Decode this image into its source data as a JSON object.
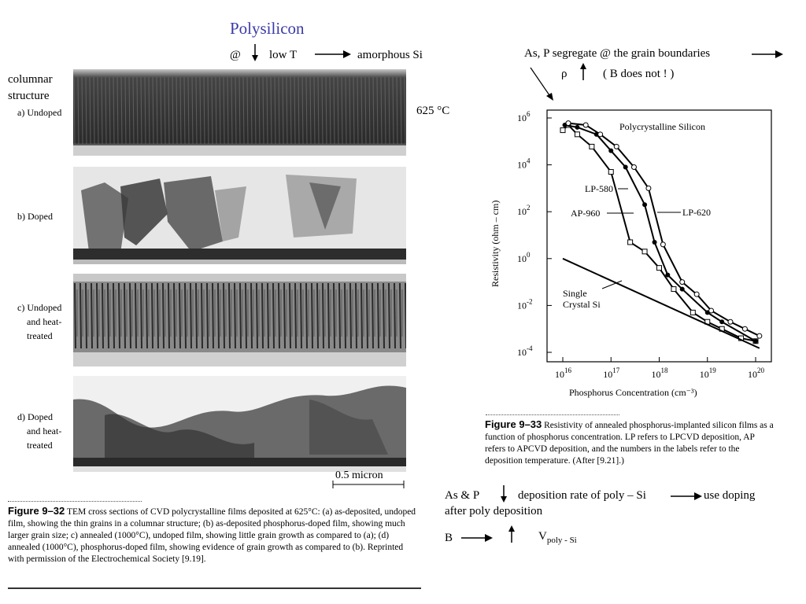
{
  "slide": {
    "title": "Polysilicon",
    "top_note": {
      "at": "@",
      "low_t": "low T",
      "result": "amorphous Si"
    },
    "columnar_1": "columnar",
    "columnar_2": "structure",
    "temperature": "625 °C",
    "segregation": {
      "line1": "As, P segregate @ the grain boundaries",
      "rho": "ρ",
      "note": "( B does not ! )"
    },
    "bottom": {
      "as_p": "As & P",
      "dep_rate": "deposition rate of poly – Si",
      "use_doping": "use doping",
      "after": "after poly deposition",
      "b": "B",
      "v": "V",
      "v_sub": "poly - Si"
    }
  },
  "figure_left": {
    "panels": [
      {
        "label": "a) Undoped"
      },
      {
        "label": "b) Doped"
      },
      {
        "label_1": "c) Undoped",
        "label_2": "and heat-",
        "label_3": "treated"
      },
      {
        "label_1": "d) Doped",
        "label_2": "and heat-",
        "label_3": "treated"
      }
    ],
    "scale_bar": "0.5 micron",
    "caption_fig": "Figure 9–32",
    "caption_text": "TEM cross sections of CVD polycrystalline films deposited at 625°C: (a) as-deposited, undoped film, showing the thin grains in a columnar structure; (b) as-deposited phosphorus-doped film, showing much larger grain size; c) annealed (1000°C), undoped film, showing little grain growth as compared to (a); (d) annealed (1000°C), phosphorus-doped film, showing evidence of grain growth as compared to (b). Reprinted with permission of the Electrochemical Society [9.19]."
  },
  "chart_data": {
    "type": "line",
    "title": "Polycrystalline Silicon",
    "xlabel": "Phosphorus Concentration (cm⁻³)",
    "ylabel": "Resistivity (ohm – cm)",
    "x_scale": "log",
    "y_scale": "log",
    "xlim": [
      1e+16,
      1e+20
    ],
    "ylim": [
      0.0001,
      1000000.0
    ],
    "x_ticks": [
      {
        "base": "10",
        "exp": "16"
      },
      {
        "base": "10",
        "exp": "17"
      },
      {
        "base": "10",
        "exp": "18"
      },
      {
        "base": "10",
        "exp": "19"
      },
      {
        "base": "10",
        "exp": "20"
      }
    ],
    "y_ticks": [
      {
        "base": "10",
        "exp": "6"
      },
      {
        "base": "10",
        "exp": "4"
      },
      {
        "base": "10",
        "exp": "2"
      },
      {
        "base": "10",
        "exp": "0"
      },
      {
        "base": "10",
        "exp": "-2"
      },
      {
        "base": "10",
        "exp": "-4"
      }
    ],
    "series": [
      {
        "name": "LP-580",
        "marker": "square",
        "x": [
          1e+16,
          1.3e+16,
          2e+16,
          4e+16,
          1e+17,
          2.5e+17,
          5e+17,
          1e+18,
          2e+18,
          5e+18,
          1e+19,
          2e+19,
          5e+19,
          1e+20
        ],
        "y": [
          300000,
          500000,
          200000,
          60000,
          5000,
          5,
          2,
          0.4,
          0.05,
          0.005,
          0.002,
          0.001,
          0.0004,
          0.0003
        ]
      },
      {
        "name": "AP-960",
        "marker": "circle-filled",
        "x": [
          1.1e+16,
          2e+16,
          5e+16,
          1e+17,
          2e+17,
          5e+17,
          8e+17,
          1.5e+18,
          3e+18,
          1e+19,
          2e+19,
          1e+20
        ],
        "y": [
          500000,
          400000,
          200000,
          40000,
          8000,
          200,
          5,
          0.2,
          0.05,
          0.005,
          0.002,
          0.0003
        ]
      },
      {
        "name": "LP-620",
        "marker": "circle-open",
        "x": [
          1.3e+16,
          3e+16,
          6e+16,
          1.3e+17,
          3e+17,
          6e+17,
          1.2e+18,
          3e+18,
          6e+18,
          1.2e+19,
          3e+19,
          6e+19,
          1.2e+20
        ],
        "y": [
          600000,
          500000,
          200000,
          60000,
          8000,
          1000,
          4,
          0.1,
          0.03,
          0.006,
          0.002,
          0.001,
          0.0005
        ]
      }
    ],
    "reference_line": {
      "name": "Single Crystal Si",
      "x": [
        1e+16,
        1.2e+20
      ],
      "y": [
        1,
        0.00015
      ]
    },
    "annotations": [
      "LP-580",
      "AP-960",
      "LP-620",
      "Single",
      "Crystal Si"
    ],
    "caption_fig": "Figure 9–33",
    "caption_text": "Resistivity of annealed phosphorus-implanted silicon films as a function of phosphorus concentration. LP refers to LPCVD deposition, AP refers to APCVD deposition, and the numbers in the labels refer to the deposition temperature. (After [9.21].)"
  }
}
